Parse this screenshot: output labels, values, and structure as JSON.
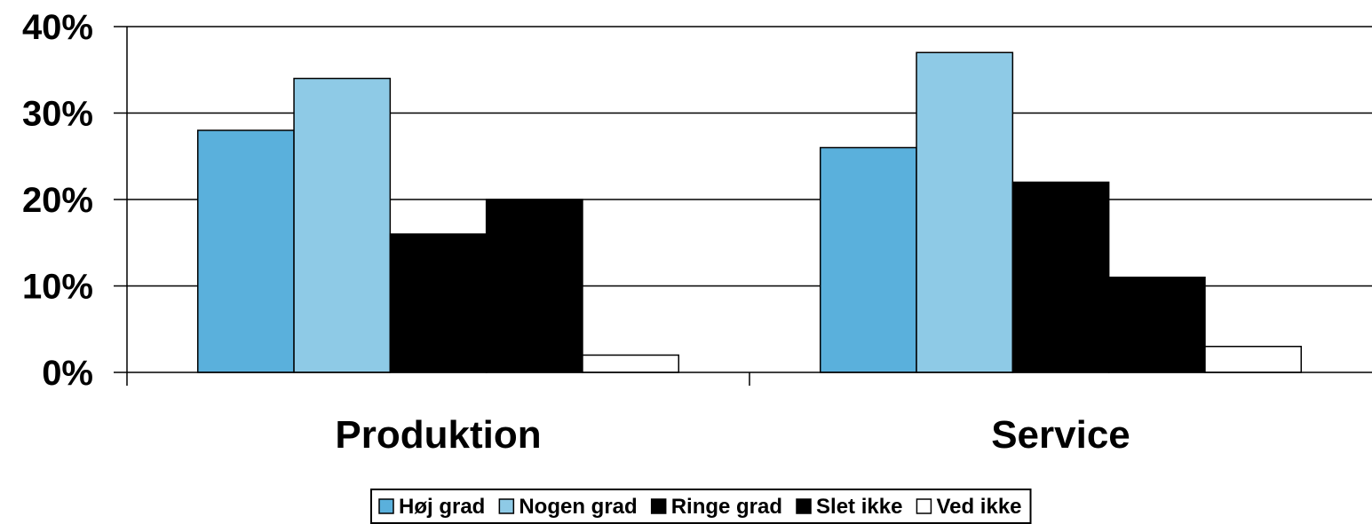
{
  "chart_data": {
    "type": "bar",
    "categories": [
      "Produktion",
      "Service"
    ],
    "series": [
      {
        "name": "Høj grad",
        "values": [
          28,
          26
        ],
        "color": "#5AB0DC"
      },
      {
        "name": "Nogen grad",
        "values": [
          34,
          37
        ],
        "color": "#8ECAE6"
      },
      {
        "name": "Ringe grad",
        "values": [
          16,
          22
        ],
        "color": "#000000"
      },
      {
        "name": "Slet ikke",
        "values": [
          20,
          11
        ],
        "color": "#000000"
      },
      {
        "name": "Ved ikke",
        "values": [
          2,
          3
        ],
        "color": "#FFFFFF"
      }
    ],
    "ylim": [
      0,
      40
    ],
    "yticks": [
      "0%",
      "10%",
      "20%",
      "30%",
      "40%"
    ],
    "grid": true,
    "legend_position": "bottom",
    "title": "",
    "xlabel": "",
    "ylabel": ""
  }
}
